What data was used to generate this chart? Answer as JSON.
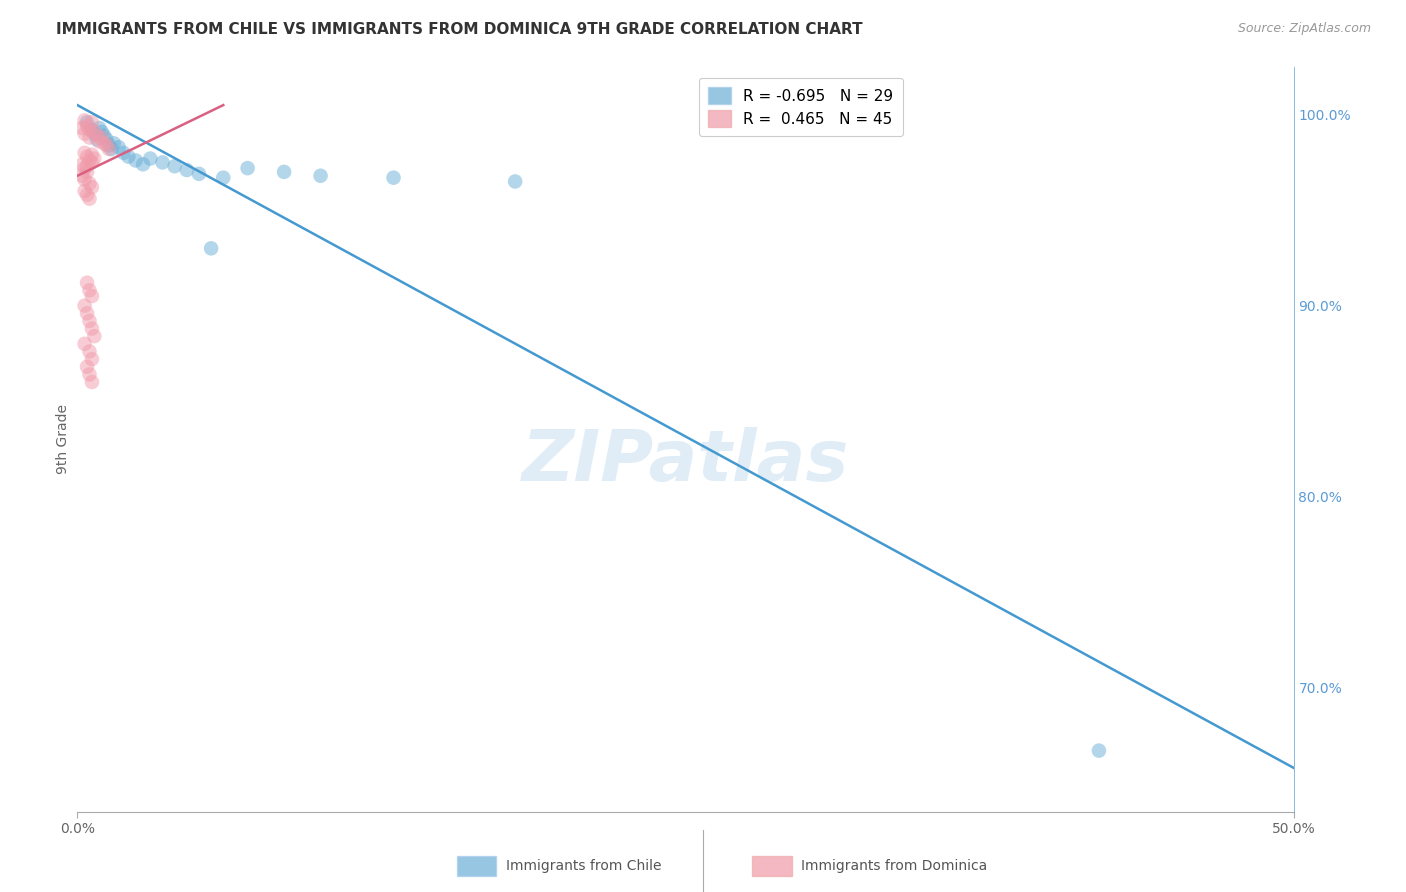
{
  "title": "IMMIGRANTS FROM CHILE VS IMMIGRANTS FROM DOMINICA 9TH GRADE CORRELATION CHART",
  "source": "Source: ZipAtlas.com",
  "ylabel": "9th Grade",
  "xlim": [
    0.0,
    0.5
  ],
  "ylim": [
    0.635,
    1.025
  ],
  "chile_R": -0.695,
  "chile_N": 29,
  "dominica_R": 0.465,
  "dominica_N": 45,
  "chile_color": "#6aaed6",
  "dominica_color": "#f09aaa",
  "chile_line_color": "#4499d0",
  "dominica_line_color": "#d96080",
  "watermark": "ZIPatlas",
  "grid_color": "#dddddd",
  "right_axis_color": "#5b9bd5",
  "x_ticks": [
    0.0,
    0.5
  ],
  "x_labels": [
    "0.0%",
    "50.0%"
  ],
  "y_ticks": [
    0.7,
    0.8,
    0.9,
    1.0
  ],
  "y_labels": [
    "70.0%",
    "80.0%",
    "90.0%",
    "100.0%"
  ],
  "chile_line_x": [
    0.0,
    0.5
  ],
  "chile_line_y": [
    1.005,
    0.658
  ],
  "dominica_line_x": [
    0.0,
    0.06
  ],
  "dominica_line_y": [
    0.968,
    1.005
  ],
  "chile_scatter": [
    [
      0.004,
      0.996
    ],
    [
      0.006,
      0.992
    ],
    [
      0.007,
      0.99
    ],
    [
      0.008,
      0.987
    ],
    [
      0.009,
      0.993
    ],
    [
      0.01,
      0.991
    ],
    [
      0.011,
      0.989
    ],
    [
      0.012,
      0.987
    ],
    [
      0.013,
      0.984
    ],
    [
      0.014,
      0.982
    ],
    [
      0.015,
      0.985
    ],
    [
      0.017,
      0.983
    ],
    [
      0.019,
      0.98
    ],
    [
      0.021,
      0.978
    ],
    [
      0.024,
      0.976
    ],
    [
      0.027,
      0.974
    ],
    [
      0.03,
      0.977
    ],
    [
      0.035,
      0.975
    ],
    [
      0.04,
      0.973
    ],
    [
      0.045,
      0.971
    ],
    [
      0.05,
      0.969
    ],
    [
      0.06,
      0.967
    ],
    [
      0.07,
      0.972
    ],
    [
      0.085,
      0.97
    ],
    [
      0.1,
      0.968
    ],
    [
      0.13,
      0.967
    ],
    [
      0.18,
      0.965
    ],
    [
      0.055,
      0.93
    ],
    [
      0.42,
      0.667
    ]
  ],
  "dominica_scatter": [
    [
      0.003,
      0.997
    ],
    [
      0.004,
      0.994
    ],
    [
      0.005,
      0.992
    ],
    [
      0.006,
      0.996
    ],
    [
      0.007,
      0.991
    ],
    [
      0.008,
      0.989
    ],
    [
      0.009,
      0.986
    ],
    [
      0.01,
      0.988
    ],
    [
      0.011,
      0.985
    ],
    [
      0.012,
      0.984
    ],
    [
      0.013,
      0.982
    ],
    [
      0.003,
      0.98
    ],
    [
      0.004,
      0.978
    ],
    [
      0.005,
      0.976
    ],
    [
      0.006,
      0.979
    ],
    [
      0.007,
      0.977
    ],
    [
      0.002,
      0.974
    ],
    [
      0.003,
      0.972
    ],
    [
      0.004,
      0.97
    ],
    [
      0.002,
      0.993
    ],
    [
      0.003,
      0.99
    ],
    [
      0.005,
      0.988
    ],
    [
      0.006,
      0.975
    ],
    [
      0.004,
      0.973
    ],
    [
      0.002,
      0.968
    ],
    [
      0.003,
      0.966
    ],
    [
      0.005,
      0.964
    ],
    [
      0.006,
      0.962
    ],
    [
      0.003,
      0.96
    ],
    [
      0.004,
      0.958
    ],
    [
      0.005,
      0.956
    ],
    [
      0.004,
      0.912
    ],
    [
      0.005,
      0.908
    ],
    [
      0.006,
      0.905
    ],
    [
      0.003,
      0.9
    ],
    [
      0.004,
      0.896
    ],
    [
      0.005,
      0.892
    ],
    [
      0.006,
      0.888
    ],
    [
      0.007,
      0.884
    ],
    [
      0.003,
      0.88
    ],
    [
      0.005,
      0.876
    ],
    [
      0.006,
      0.872
    ],
    [
      0.004,
      0.868
    ],
    [
      0.005,
      0.864
    ],
    [
      0.006,
      0.86
    ]
  ]
}
